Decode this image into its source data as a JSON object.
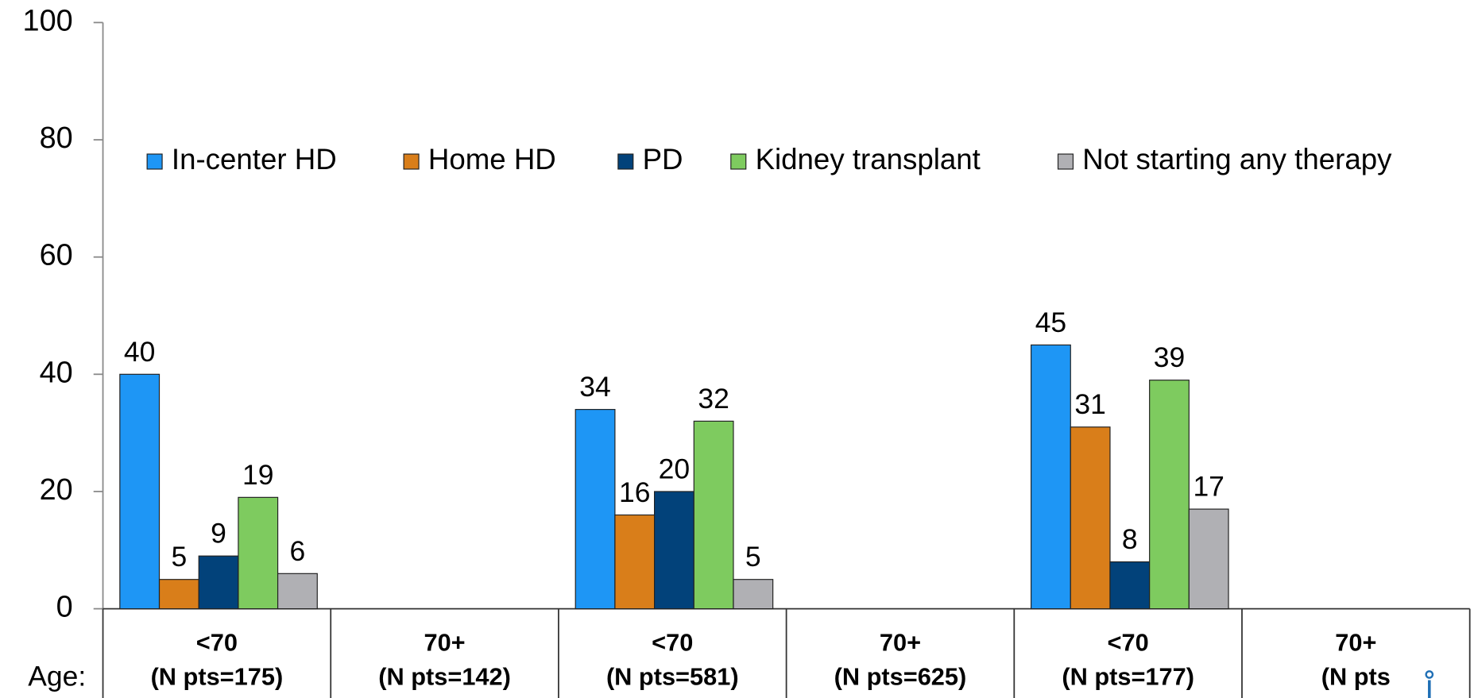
{
  "chart_data": {
    "type": "bar",
    "categories": [
      "<70",
      "70+",
      "<70",
      "70+",
      "<70",
      "70+"
    ],
    "category_sublabels": [
      "(N pts=175)",
      "(N pts=142)",
      "(N pts=581)",
      "(N pts=625)",
      "(N pts=177)",
      "(N pts"
    ],
    "xlabel": "Age:",
    "series": [
      {
        "name": "In-center HD",
        "color": "#1e96f5",
        "values": [
          40,
          null,
          34,
          null,
          45,
          null
        ]
      },
      {
        "name": "Home HD",
        "color": "#d97e1a",
        "values": [
          5,
          null,
          16,
          null,
          31,
          null
        ]
      },
      {
        "name": "PD",
        "color": "#02427a",
        "values": [
          9,
          null,
          20,
          null,
          8,
          null
        ]
      },
      {
        "name": "Kidney transplant",
        "color": "#7ecb5f",
        "values": [
          19,
          null,
          32,
          null,
          39,
          null
        ]
      },
      {
        "name": "Not starting any therapy",
        "color": "#b0b0b4",
        "values": [
          6,
          null,
          5,
          null,
          17,
          null
        ]
      }
    ],
    "ylim": [
      0,
      100
    ],
    "yticks": [
      0,
      20,
      40,
      60,
      80,
      100
    ],
    "legend": "top"
  }
}
